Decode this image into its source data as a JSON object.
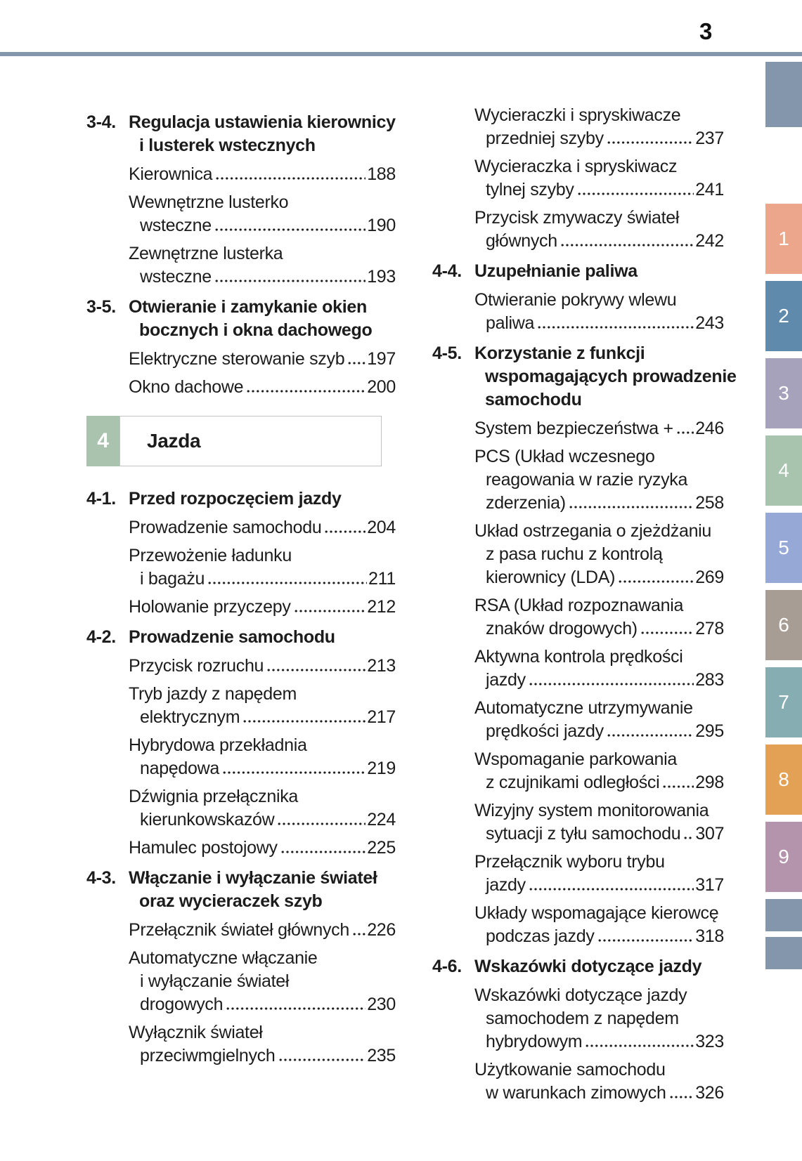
{
  "page": {
    "number": "3"
  },
  "colors": {
    "rule": "#8496ab",
    "banner_square": "#a9c3ae",
    "text": "#1c1c1c"
  },
  "columns": {
    "left": [
      {
        "k": "h",
        "num": "3-4.",
        "lines": [
          "Regulacja ustawienia kierownicy",
          "i lusterek wstecznych"
        ]
      },
      {
        "k": "i",
        "lines": [
          "Kierownica"
        ],
        "page": "188"
      },
      {
        "k": "i",
        "lines": [
          "Wewnętrzne lusterko",
          "wsteczne"
        ],
        "page": "190"
      },
      {
        "k": "i",
        "lines": [
          "Zewnętrzne lusterka",
          "wsteczne"
        ],
        "page": "193"
      },
      {
        "k": "h",
        "num": "3-5.",
        "lines": [
          "Otwieranie i zamykanie okien",
          "bocznych i okna dachowego"
        ]
      },
      {
        "k": "i",
        "lines": [
          "Elektryczne sterowanie szyb"
        ],
        "page": "197"
      },
      {
        "k": "i",
        "lines": [
          "Okno dachowe"
        ],
        "page": "200"
      },
      {
        "k": "banner",
        "num": "4",
        "title": "Jazda"
      },
      {
        "k": "h",
        "num": "4-1.",
        "lines": [
          "Przed rozpoczęciem jazdy"
        ]
      },
      {
        "k": "i",
        "lines": [
          "Prowadzenie samochodu"
        ],
        "page": "204"
      },
      {
        "k": "i",
        "lines": [
          "Przewożenie ładunku",
          "i bagażu"
        ],
        "page": "211"
      },
      {
        "k": "i",
        "lines": [
          "Holowanie przyczepy"
        ],
        "page": "212"
      },
      {
        "k": "h",
        "num": "4-2.",
        "lines": [
          "Prowadzenie samochodu"
        ]
      },
      {
        "k": "i",
        "lines": [
          "Przycisk rozruchu"
        ],
        "page": "213"
      },
      {
        "k": "i",
        "lines": [
          "Tryb jazdy z napędem",
          "elektrycznym"
        ],
        "page": "217"
      },
      {
        "k": "i",
        "lines": [
          "Hybrydowa przekładnia",
          "napędowa"
        ],
        "page": "219"
      },
      {
        "k": "i",
        "lines": [
          "Dźwignia przełącznika",
          "kierunkowskazów"
        ],
        "page": "224"
      },
      {
        "k": "i",
        "lines": [
          "Hamulec postojowy"
        ],
        "page": "225"
      },
      {
        "k": "h",
        "num": "4-3.",
        "lines": [
          "Włączanie i wyłączanie świateł",
          "oraz wycieraczek szyb"
        ]
      },
      {
        "k": "i",
        "lines": [
          "Przełącznik świateł głównych"
        ],
        "page": "226"
      },
      {
        "k": "i",
        "lines": [
          "Automatyczne włączanie",
          "i wyłączanie świateł",
          "drogowych"
        ],
        "page": "230"
      },
      {
        "k": "i",
        "lines": [
          "Wyłącznik świateł",
          "przeciwmgielnych"
        ],
        "page": "235"
      }
    ],
    "right": [
      {
        "k": "i",
        "lines": [
          "Wycieraczki i spryskiwacze",
          "przedniej szyby"
        ],
        "page": "237"
      },
      {
        "k": "i",
        "lines": [
          "Wycieraczka i spryskiwacz",
          "tylnej szyby"
        ],
        "page": "241"
      },
      {
        "k": "i",
        "lines": [
          "Przycisk zmywaczy świateł",
          "głównych"
        ],
        "page": "242"
      },
      {
        "k": "h",
        "num": "4-4.",
        "lines": [
          "Uzupełnianie paliwa"
        ]
      },
      {
        "k": "i",
        "lines": [
          "Otwieranie pokrywy wlewu",
          "paliwa"
        ],
        "page": "243"
      },
      {
        "k": "h",
        "num": "4-5.",
        "lines": [
          "Korzystanie z funkcji",
          "wspomagających prowadzenie",
          "samochodu"
        ]
      },
      {
        "k": "i",
        "lines": [
          "System bezpieczeństwa +"
        ],
        "page": "246"
      },
      {
        "k": "i",
        "lines": [
          "PCS (Układ wczesnego",
          "reagowania w razie ryzyka",
          "zderzenia)"
        ],
        "page": "258"
      },
      {
        "k": "i",
        "lines": [
          "Układ ostrzegania o zjeżdżaniu",
          "z pasa ruchu z kontrolą",
          "kierownicy (LDA)"
        ],
        "page": "269"
      },
      {
        "k": "i",
        "lines": [
          "RSA (Układ rozpoznawania",
          "znaków drogowych)"
        ],
        "page": "278"
      },
      {
        "k": "i",
        "lines": [
          "Aktywna kontrola prędkości",
          "jazdy"
        ],
        "page": "283"
      },
      {
        "k": "i",
        "lines": [
          "Automatyczne utrzymywanie",
          "prędkości jazdy"
        ],
        "page": "295"
      },
      {
        "k": "i",
        "lines": [
          "Wspomaganie parkowania",
          "z czujnikami odległości"
        ],
        "page": "298"
      },
      {
        "k": "i",
        "lines": [
          "Wizyjny system monitorowania",
          "sytuacji z tyłu samochodu"
        ],
        "page": "307"
      },
      {
        "k": "i",
        "lines": [
          "Przełącznik wyboru trybu",
          "jazdy"
        ],
        "page": "317"
      },
      {
        "k": "i",
        "lines": [
          "Układy wspomagające kierowcę",
          "podczas jazdy"
        ],
        "page": "318"
      },
      {
        "k": "h",
        "num": "4-6.",
        "lines": [
          "Wskazówki dotyczące jazdy"
        ]
      },
      {
        "k": "i",
        "lines": [
          "Wskazówki dotyczące jazdy",
          "samochodem z napędem",
          "hybrydowym"
        ],
        "page": "323"
      },
      {
        "k": "i",
        "lines": [
          "Użytkowanie samochodu",
          "w warunkach zimowych"
        ],
        "page": "326"
      }
    ]
  },
  "tabs": [
    {
      "label": "",
      "color": "#8496ab"
    },
    {
      "label": "1",
      "color": "#eca68c"
    },
    {
      "label": "2",
      "color": "#5f8aac"
    },
    {
      "label": "3",
      "color": "#a6a2bc"
    },
    {
      "label": "4",
      "color": "#a8c4ae"
    },
    {
      "label": "5",
      "color": "#95a8d6"
    },
    {
      "label": "6",
      "color": "#a89d94"
    },
    {
      "label": "7",
      "color": "#85adb2"
    },
    {
      "label": "8",
      "color": "#e3a156"
    },
    {
      "label": "9",
      "color": "#b494ad"
    },
    {
      "label": "",
      "color": "#8496ab"
    },
    {
      "label": "",
      "color": "#8496ab"
    }
  ]
}
